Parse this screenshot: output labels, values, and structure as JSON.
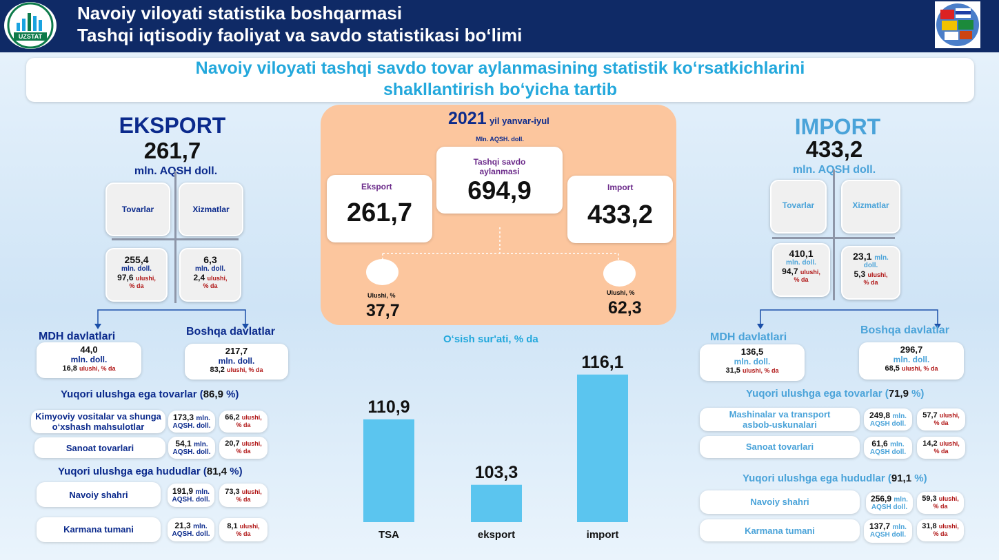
{
  "header": {
    "line1": "Navoiy viloyati statistika boshqarmasi",
    "line2": "Tashqi iqtisodiy faoliyat va savdo statistikasi bo‘limi",
    "logo_text": "UZSTAT"
  },
  "title": {
    "line1": "Navoiy viloyati tashqi savdo tovar aylanmasining statistik ko‘rsatkichlarini",
    "line2": "shakllantirish bo‘yicha tartib"
  },
  "colors": {
    "navy": "#0b2a8c",
    "light_blue": "#4aa3d9",
    "bar": "#5bc5ef",
    "panel": "#fcc69e",
    "header": "#0f2a66"
  },
  "export": {
    "heading": "EKSPORT",
    "total": "261,7",
    "unit": "mln. AQSH doll.",
    "goods_label": "Tovarlar",
    "services_label": "Xizmatlar",
    "goods_value": "255,4",
    "goods_unit": "mln. doll.",
    "goods_share": "97,6",
    "share_word": "ulushi,",
    "share_unit": "% da",
    "services_value": "6,3",
    "services_unit": "mln. doll.",
    "services_share": "2,4",
    "cis_label": "MDH davlatlari",
    "cis_value": "44,0",
    "cis_unit": "mln. doll.",
    "cis_share": "16,8",
    "cis_share_word": "ulushi, % da",
    "other_label": "Boshqa davlatlar",
    "other_value": "217,7",
    "other_unit": "mln. doll.",
    "other_share": "83,2",
    "goods_heading_pre": "Yuqori ulushga ega tovarlar (",
    "goods_heading_val": "86,9",
    "goods_heading_post": " %)",
    "goods": [
      {
        "name_l1": "Kimyoviy vositalar va shunga",
        "name_l2": "o‘xshash mahsulotlar",
        "value": "173,3",
        "unit1": "mln.",
        "unit2": "AQSH. doll.",
        "share": "66,2",
        "share_word": "ulushi,",
        "share_unit": "% da"
      },
      {
        "name_l1": "Sanoat tovarlari",
        "name_l2": "",
        "value": "54,1",
        "unit1": "mln.",
        "unit2": "AQSH. doll.",
        "share": "20,7",
        "share_word": "ulushi,",
        "share_unit": "% da"
      }
    ],
    "regions_heading_pre": "Yuqori ulushga ega hududlar (",
    "regions_heading_val": "81,4",
    "regions_heading_post": " %)",
    "regions": [
      {
        "name": "Navoiy shahri",
        "value": "191,9",
        "unit1": "mln.",
        "unit2": "AQSH. doll.",
        "share": "73,3",
        "share_word": "ulushi,",
        "share_unit": "% da"
      },
      {
        "name": "Karmana tumani",
        "value": "21,3",
        "unit1": "mln.",
        "unit2": "AQSH. doll.",
        "share": "8,1",
        "share_word": "ulushi,",
        "share_unit": "% da"
      }
    ]
  },
  "import": {
    "heading": "IMPORT",
    "total": "433,2",
    "unit": "mln. AQSH doll.",
    "goods_label": "Tovarlar",
    "services_label": "Xizmatlar",
    "goods_value": "410,1",
    "goods_unit": "mln. doll.",
    "goods_share": "94,7",
    "share_word": "ulushi,",
    "share_unit": "% da",
    "services_value": "23,1",
    "services_unit1": "mln.",
    "services_unit2": "doll.",
    "services_share": "5,3",
    "cis_label": "MDH davlatlari",
    "cis_value": "136,5",
    "cis_unit": "mln. doll.",
    "cis_share": "31,5",
    "cis_share_word": "ulushi, % da",
    "other_label": "Boshqa davlatlar",
    "other_value": "296,7",
    "other_unit": "mln. doll.",
    "other_share": "68,5",
    "goods_heading_pre": "Yuqori ulushga ega tovarlar (",
    "goods_heading_val": "71,9",
    "goods_heading_post": " %)",
    "goods": [
      {
        "name_l1": "Mashinalar va transport",
        "name_l2": "asbob-uskunalari",
        "value": "249,8",
        "unit1": "mln.",
        "unit2": "AQSH doll.",
        "share": "57,7",
        "share_word": "ulushi,",
        "share_unit": "% da"
      },
      {
        "name_l1": "Sanoat tovarlari",
        "name_l2": "",
        "value": "61,6",
        "unit1": "mln.",
        "unit2": "AQSH doll.",
        "share": "14,2",
        "share_word": "ulushi,",
        "share_unit": "% da"
      }
    ],
    "regions_heading_pre": "Yuqori ulushga ega hududlar (",
    "regions_heading_val": "91,1",
    "regions_heading_post": " %)",
    "regions": [
      {
        "name": "Navoiy shahri",
        "value": "256,9",
        "unit1": "mln.",
        "unit2": "AQSH doll.",
        "share": "59,3",
        "share_word": "ulushi,",
        "share_unit": "% da"
      },
      {
        "name": "Karmana tumani",
        "value": "137,7",
        "unit1": "mln.",
        "unit2": "AQSH doll.",
        "share": "31,8",
        "share_word": "ulushi,",
        "share_unit": "% da"
      }
    ]
  },
  "center": {
    "year": "2021",
    "period": "yil yanvar-iyul",
    "unit": "Mln. AQSH. doll.",
    "turnover_label_l1": "Tashqi savdo",
    "turnover_label_l2": "aylanmasi",
    "turnover_value": "694,9",
    "export_label": "Eksport",
    "export_value": "261,7",
    "import_label": "Import",
    "import_value": "433,2",
    "export_share_label": "Ulushi, %",
    "export_share": "37,7",
    "import_share_label": "Ulushi, %",
    "import_share": "62,3"
  },
  "chart_data": {
    "type": "bar",
    "title": "O‘sish sur'ati, % da",
    "categories": [
      "TSA",
      "eksport",
      "import"
    ],
    "values": [
      110.9,
      103.3,
      116.1
    ],
    "value_labels": [
      "110,9",
      "103,3",
      "116,1"
    ]
  }
}
